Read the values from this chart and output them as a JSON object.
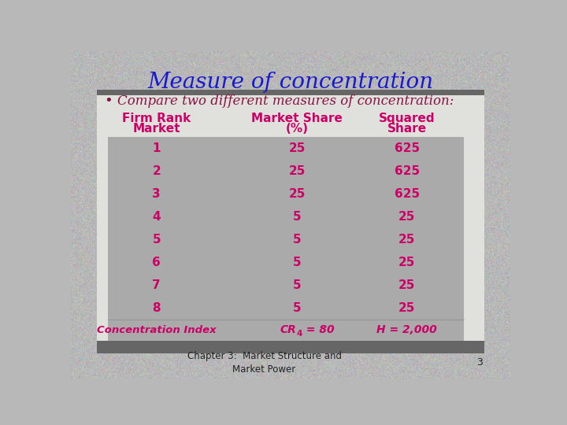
{
  "title": "Measure of concentration",
  "bullet": "Compare two different measures of concentration:",
  "title_color": "#1a1aCC",
  "bullet_color": "#881144",
  "bullet_dot_color": "#881144",
  "table_bg_color": "#AAAAAA",
  "slide_bg_color": "#B8B8B8",
  "white_area_color": "#E8E8E8",
  "header_row": [
    "Firm Rank\nMarket",
    "Market Share\n(%)",
    "Squared\nShare"
  ],
  "data_rows": [
    [
      "1",
      "25",
      "625"
    ],
    [
      "2",
      "25",
      "625"
    ],
    [
      "3",
      "25",
      "625"
    ],
    [
      "4",
      "5",
      "25"
    ],
    [
      "5",
      "5",
      "25"
    ],
    [
      "6",
      "5",
      "25"
    ],
    [
      "7",
      "5",
      "25"
    ],
    [
      "8",
      "5",
      "25"
    ]
  ],
  "footer_row": [
    "Concentration Index",
    "CR4 = 80",
    "H = 2,000"
  ],
  "data_color": "#CC0066",
  "header_color": "#CC0066",
  "footer_color": "#CC0066",
  "caption": "Chapter 3:  Market Structure and\nMarket Power",
  "page_number": "3",
  "top_bar_color": "#666666",
  "bottom_bar_color": "#666666"
}
